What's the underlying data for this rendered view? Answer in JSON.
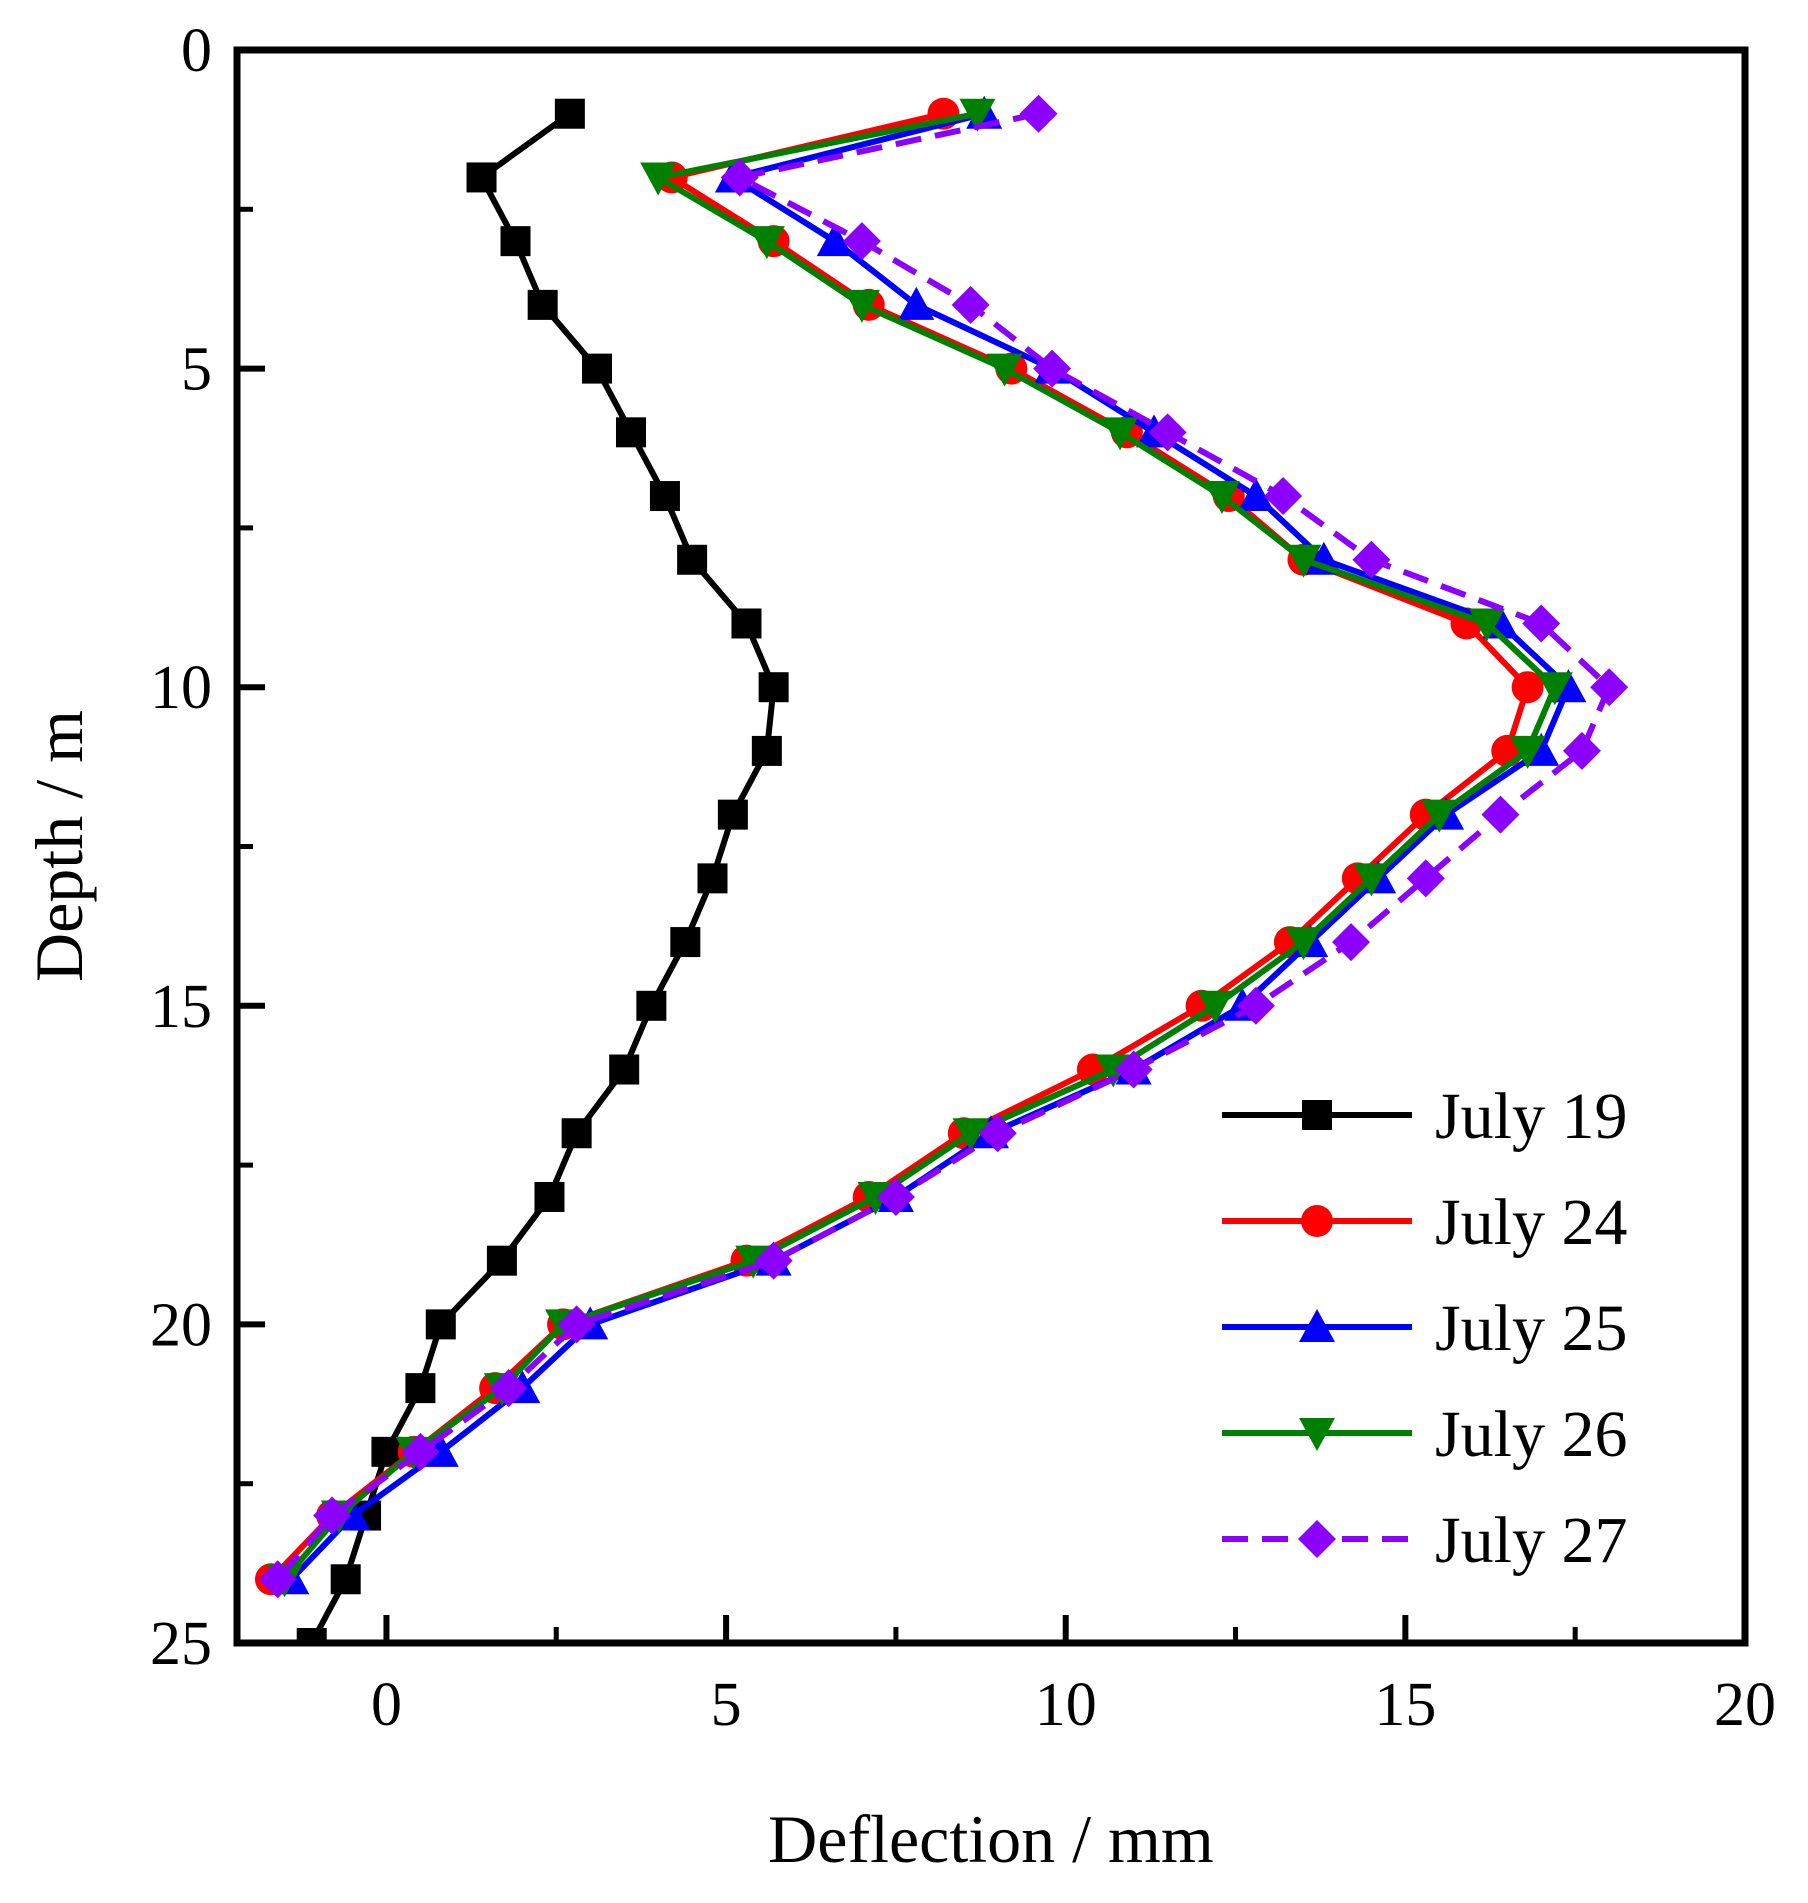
{
  "chart_data": {
    "type": "line",
    "title": "",
    "xlabel": "Deflection / mm",
    "ylabel": "Depth / m",
    "xlim": [
      -2.2,
      20
    ],
    "ylim": [
      0,
      25
    ],
    "y_inverted": true,
    "x_axis_position": "bottom",
    "legend_position": "bottom-right",
    "x_ticks": [
      0,
      5,
      10,
      15,
      20
    ],
    "y_ticks": [
      0,
      5,
      10,
      15,
      20,
      25
    ],
    "x_tick_labels": [
      "0",
      "5",
      "10",
      "15",
      "20"
    ],
    "y_tick_labels": [
      "0",
      "5",
      "10",
      "15",
      "20",
      "25"
    ],
    "series": [
      {
        "name": "July 19",
        "color": "#000000",
        "marker": "square",
        "dashed": false,
        "x": [
          2.7,
          1.4,
          1.9,
          2.3,
          3.1,
          3.6,
          4.1,
          4.5,
          5.3,
          5.7,
          5.6,
          5.1,
          4.8,
          4.4,
          3.9,
          3.5,
          2.8,
          2.4,
          1.7,
          0.8,
          0.5,
          0.0,
          -0.3,
          -0.6,
          -1.1
        ],
        "y": [
          1,
          2,
          3,
          4,
          5,
          6,
          7,
          8,
          9,
          10,
          11,
          12,
          13,
          14,
          15,
          16,
          17,
          18,
          19,
          20,
          21,
          22,
          23,
          24,
          25
        ]
      },
      {
        "name": "July 24",
        "color": "#ff0000",
        "marker": "circle",
        "dashed": false,
        "x": [
          8.2,
          4.2,
          5.7,
          7.1,
          9.2,
          10.9,
          12.4,
          13.5,
          15.9,
          16.8,
          16.5,
          15.3,
          14.3,
          13.3,
          12.0,
          10.4,
          8.5,
          7.1,
          5.3,
          2.6,
          1.6,
          0.4,
          -0.8,
          -1.7
        ],
        "y": [
          1,
          2,
          3,
          4,
          5,
          6,
          7,
          8,
          9,
          10,
          11,
          12,
          13,
          14,
          15,
          16,
          17,
          18,
          19,
          20,
          21,
          22,
          23,
          24
        ]
      },
      {
        "name": "July 25",
        "color": "#0000ff",
        "marker": "triangle-up",
        "dashed": false,
        "x": [
          8.8,
          5.1,
          6.6,
          7.8,
          9.8,
          11.3,
          12.8,
          13.8,
          16.4,
          17.4,
          17.0,
          15.6,
          14.6,
          13.6,
          12.6,
          11.0,
          8.9,
          7.5,
          5.7,
          3.0,
          2.0,
          0.8,
          -0.5,
          -1.4
        ],
        "y": [
          1,
          2,
          3,
          4,
          5,
          6,
          7,
          8,
          9,
          10,
          11,
          12,
          13,
          14,
          15,
          16,
          17,
          18,
          19,
          20,
          21,
          22,
          23,
          24
        ]
      },
      {
        "name": "July 26",
        "color": "#008000",
        "marker": "triangle-down",
        "dashed": false,
        "x": [
          8.7,
          4.0,
          5.6,
          7.0,
          9.1,
          10.8,
          12.3,
          13.5,
          16.2,
          17.2,
          16.8,
          15.5,
          14.5,
          13.5,
          12.2,
          10.7,
          8.6,
          7.2,
          5.4,
          2.6,
          1.7,
          0.4,
          -0.7,
          -1.5
        ],
        "y": [
          1,
          2,
          3,
          4,
          5,
          6,
          7,
          8,
          9,
          10,
          11,
          12,
          13,
          14,
          15,
          16,
          17,
          18,
          19,
          20,
          21,
          22,
          23,
          24
        ]
      },
      {
        "name": "July 27",
        "color": "#8b00ff",
        "marker": "diamond",
        "dashed": true,
        "x": [
          9.6,
          5.2,
          7.0,
          8.6,
          9.8,
          11.5,
          13.2,
          14.5,
          17.0,
          18.0,
          17.6,
          16.4,
          15.3,
          14.2,
          12.8,
          11.0,
          9.0,
          7.5,
          5.7,
          2.8,
          1.8,
          0.5,
          -0.8,
          -1.6
        ],
        "y": [
          1,
          2,
          3,
          4,
          5,
          6,
          7,
          8,
          9,
          10,
          11,
          12,
          13,
          14,
          15,
          16,
          17,
          18,
          19,
          20,
          21,
          22,
          23,
          24
        ]
      }
    ]
  }
}
